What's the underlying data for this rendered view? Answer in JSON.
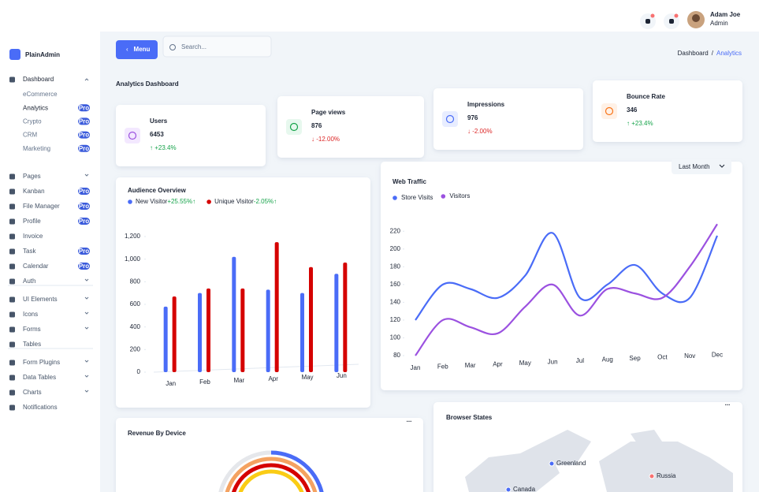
{
  "header": {
    "menu_button": "Menu",
    "search_placeholder": "Search...",
    "user": {
      "name": "Adam Joe",
      "role": "Admin"
    },
    "breadcrumb": [
      "Dashboard",
      "/",
      "Analytics"
    ]
  },
  "sidebar": {
    "brand": "PlainAdmin",
    "sections": [
      [
        {
          "label": "Dashboard",
          "expandable": true,
          "children": [
            {
              "label": "eCommerce"
            },
            {
              "label": "Analytics",
              "badge": "Pro"
            },
            {
              "label": "Crypto",
              "badge": "Pro"
            },
            {
              "label": "CRM",
              "badge": "Pro"
            },
            {
              "label": "Marketing",
              "badge": "Pro"
            }
          ]
        },
        {
          "label": "Pages",
          "expandable": true
        },
        {
          "label": "Kanban",
          "badge": "Pro"
        },
        {
          "label": "File Manager",
          "badge": "Pro"
        },
        {
          "label": "Profile",
          "badge": "Pro"
        },
        {
          "label": "Invoice"
        },
        {
          "label": "Task",
          "badge": "Pro"
        },
        {
          "label": "Calendar",
          "badge": "Pro"
        },
        {
          "label": "Auth",
          "expandable": true
        }
      ],
      [
        {
          "label": "UI Elements",
          "expandable": true
        },
        {
          "label": "Icons",
          "expandable": true
        },
        {
          "label": "Forms",
          "expandable": true
        },
        {
          "label": "Tables"
        }
      ],
      [
        {
          "label": "Form Plugins",
          "expandable": true
        },
        {
          "label": "Data Tables",
          "expandable": true
        },
        {
          "label": "Charts",
          "expandable": true
        },
        {
          "label": "Notifications"
        }
      ]
    ]
  },
  "page_title": "Analytics Dashboard",
  "stats": [
    {
      "label": "Users",
      "value": 6453,
      "change": "↑ +23.4%",
      "trend": "up"
    },
    {
      "label": "Page views",
      "value": 876,
      "change": "↓ -12.00%",
      "trend": "down"
    },
    {
      "label": "Impressions",
      "value": 976,
      "change": "↓ -2.00%",
      "trend": "down"
    },
    {
      "label": "Bounce Rate",
      "value": 346,
      "change": "↑ +23.4%",
      "trend": "up"
    }
  ],
  "audience_overview": {
    "type": "bar",
    "title": "Audience Overview",
    "categories": [
      "Jan",
      "Feb",
      "Mar",
      "Apr",
      "May",
      "Jun"
    ],
    "series": [
      {
        "name": "New Visitor",
        "change": "+25.55%↑",
        "color": "#4a6cf7",
        "values": [
          580,
          700,
          1020,
          730,
          700,
          870
        ]
      },
      {
        "name": "Unique Visitor",
        "change": "-2.05%↑",
        "color": "#d50100",
        "values": [
          670,
          740,
          740,
          1150,
          930,
          970
        ]
      }
    ],
    "ylim": [
      0,
      1200
    ],
    "yticks": [
      0,
      200,
      400,
      600,
      800,
      {
        "value": 1000,
        "label": "1,000"
      },
      {
        "value": 1200,
        "label": "1,200"
      }
    ]
  },
  "web_traffic": {
    "type": "line",
    "title": "Web Traffic",
    "filter": "Last Month",
    "categories": [
      "Jan",
      "Feb",
      "Mar",
      "Apr",
      "May",
      "Jun",
      "Jul",
      "Aug",
      "Sep",
      "Oct",
      "Nov",
      "Dec"
    ],
    "series": [
      {
        "name": "Store Visits",
        "color": "#4a6cf7",
        "values": [
          120,
          160,
          155,
          145,
          170,
          218,
          145,
          160,
          182,
          150,
          145,
          215
        ]
      },
      {
        "name": "Visitors",
        "color": "#9b51e0",
        "values": [
          80,
          120,
          112,
          105,
          135,
          160,
          125,
          155,
          150,
          145,
          180,
          228
        ]
      }
    ],
    "ylim": [
      80,
      230
    ],
    "yticks": [
      80,
      100,
      120,
      140,
      160,
      180,
      200,
      220
    ]
  },
  "revenue": {
    "title": "Revenue By Device",
    "menu": "..."
  },
  "browser_states": {
    "title": "Browser States",
    "menu": "...",
    "markers": [
      "Greenland",
      "Russia",
      "Canada"
    ]
  }
}
